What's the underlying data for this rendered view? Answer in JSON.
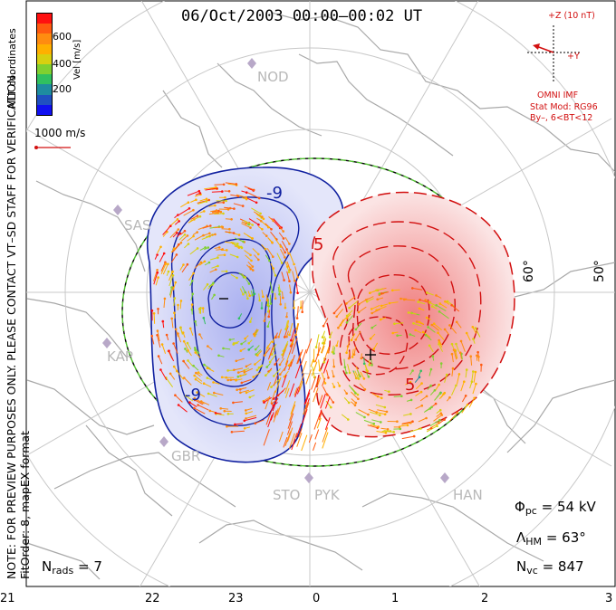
{
  "title": "06/Oct/2003 00:00–00:02 UT",
  "colorbar": {
    "label": "Vel [m/s]",
    "ticks": [
      "600",
      "400",
      "200"
    ],
    "colors": [
      "#ff1010",
      "#ff5a10",
      "#ff8c10",
      "#ffb000",
      "#d8d010",
      "#80d030",
      "#30c060",
      "#1e8ca0",
      "#2050c0",
      "#1010f0"
    ]
  },
  "coords_label": "MLT coordinates",
  "note": "NOTE: FOR PREVIEW PURPOSES ONLY. PLEASE CONTACT VT–SD STAFF FOR VERIFICATION.",
  "fit_order": "FitOrder: 8, mapEX format",
  "velocity_ref": "1000 m/s",
  "imf": {
    "scale": "+Z (10 nT)",
    "y_label": "+Y",
    "source": "OMNI IMF",
    "model": "Stat Mod: RG96",
    "condition": "By–, 6<BT<12"
  },
  "stats": {
    "phi_symbol": "Φ",
    "phi_sub": "pc",
    "phi_value": "= 54 kV",
    "lambda_symbol": "Λ",
    "lambda_sub": "HM",
    "lambda_value": "= 63°",
    "nvc_symbol": "N",
    "nvc_sub": "vc",
    "nvc_value": "= 847",
    "nrads_symbol": "N",
    "nrads_sub": "rads",
    "nrads_value": "= 7"
  },
  "latitude_labels": [
    "60°",
    "50°"
  ],
  "mlt_labels": [
    "21",
    "22",
    "23",
    "0",
    "1",
    "2",
    "3"
  ],
  "contour_labels": [
    "-9",
    "-9",
    "5",
    "5"
  ],
  "stations": [
    "NOD",
    "SAS",
    "KAP",
    "GBR",
    "STO",
    "PYK",
    "HAN"
  ],
  "colors": {
    "negative_cell": "#1020a0",
    "positive_cell": "#d21010",
    "hmb": "#50c030"
  }
}
